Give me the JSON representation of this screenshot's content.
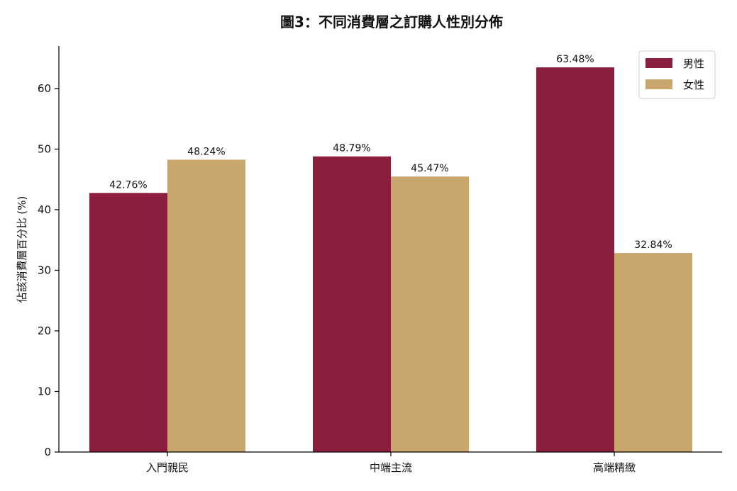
{
  "chart_data": {
    "type": "bar",
    "title": "圖3：不同消費層之訂購人性別分佈",
    "ylabel": "佔該消費層百分比 (%)",
    "xlabel": "",
    "categories": [
      "入門親民",
      "中端主流",
      "高端精緻"
    ],
    "ylim": [
      0,
      67
    ],
    "yticks": [
      0,
      10,
      20,
      30,
      40,
      50,
      60
    ],
    "legend_position": "top-right",
    "grid": false,
    "series": [
      {
        "name": "男性",
        "color": "#8B1D3D",
        "values": [
          42.76,
          48.79,
          63.48
        ],
        "labels": [
          "42.76%",
          "48.79%",
          "63.48%"
        ]
      },
      {
        "name": "女性",
        "color": "#C9A66B",
        "values": [
          48.24,
          45.47,
          32.84
        ],
        "labels": [
          "48.24%",
          "45.47%",
          "32.84%"
        ]
      }
    ]
  }
}
